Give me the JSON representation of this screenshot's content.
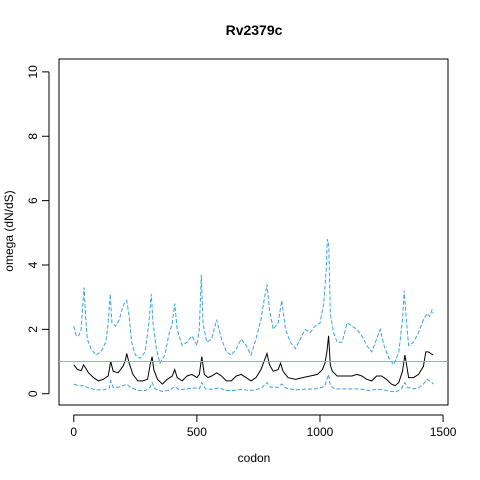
{
  "chart_data": {
    "type": "line",
    "title": "Rv2379c",
    "xlabel": "codon",
    "ylabel": "omega (dN/dS)",
    "xlim": [
      -60,
      1520
    ],
    "ylim": [
      -0.35,
      10.4
    ],
    "xticks": [
      0,
      500,
      1000,
      1500
    ],
    "yticks": [
      0,
      2,
      4,
      6,
      8,
      10
    ],
    "grid": false,
    "reference_line": {
      "y": 1,
      "color": "#d98bd0"
    },
    "series": [
      {
        "role": "estimate",
        "color": "#000000",
        "dash": false,
        "points": [
          [
            0,
            0.9
          ],
          [
            15,
            0.75
          ],
          [
            30,
            0.72
          ],
          [
            40,
            0.9
          ],
          [
            48,
            0.8
          ],
          [
            60,
            0.65
          ],
          [
            80,
            0.5
          ],
          [
            100,
            0.4
          ],
          [
            120,
            0.45
          ],
          [
            140,
            0.55
          ],
          [
            150,
            1.0
          ],
          [
            160,
            0.7
          ],
          [
            180,
            0.65
          ],
          [
            200,
            0.85
          ],
          [
            210,
            1.05
          ],
          [
            215,
            1.25
          ],
          [
            225,
            0.95
          ],
          [
            240,
            0.6
          ],
          [
            260,
            0.4
          ],
          [
            280,
            0.4
          ],
          [
            300,
            0.45
          ],
          [
            310,
            0.9
          ],
          [
            318,
            1.15
          ],
          [
            325,
            0.75
          ],
          [
            340,
            0.45
          ],
          [
            360,
            0.3
          ],
          [
            380,
            0.45
          ],
          [
            400,
            0.55
          ],
          [
            410,
            0.75
          ],
          [
            420,
            0.5
          ],
          [
            440,
            0.4
          ],
          [
            460,
            0.55
          ],
          [
            480,
            0.6
          ],
          [
            500,
            0.5
          ],
          [
            510,
            0.6
          ],
          [
            520,
            1.15
          ],
          [
            530,
            0.6
          ],
          [
            545,
            0.5
          ],
          [
            560,
            0.55
          ],
          [
            580,
            0.65
          ],
          [
            600,
            0.55
          ],
          [
            620,
            0.4
          ],
          [
            640,
            0.4
          ],
          [
            660,
            0.55
          ],
          [
            680,
            0.6
          ],
          [
            700,
            0.5
          ],
          [
            720,
            0.4
          ],
          [
            740,
            0.5
          ],
          [
            760,
            0.75
          ],
          [
            775,
            1.05
          ],
          [
            785,
            1.25
          ],
          [
            795,
            0.9
          ],
          [
            810,
            0.7
          ],
          [
            830,
            0.75
          ],
          [
            840,
            0.95
          ],
          [
            850,
            0.7
          ],
          [
            870,
            0.5
          ],
          [
            900,
            0.45
          ],
          [
            930,
            0.5
          ],
          [
            960,
            0.55
          ],
          [
            990,
            0.6
          ],
          [
            1010,
            0.75
          ],
          [
            1020,
            0.95
          ],
          [
            1028,
            1.3
          ],
          [
            1035,
            1.8
          ],
          [
            1042,
            0.9
          ],
          [
            1050,
            0.7
          ],
          [
            1070,
            0.55
          ],
          [
            1100,
            0.55
          ],
          [
            1130,
            0.55
          ],
          [
            1150,
            0.6
          ],
          [
            1170,
            0.55
          ],
          [
            1190,
            0.45
          ],
          [
            1210,
            0.4
          ],
          [
            1230,
            0.55
          ],
          [
            1250,
            0.55
          ],
          [
            1270,
            0.45
          ],
          [
            1290,
            0.3
          ],
          [
            1305,
            0.25
          ],
          [
            1320,
            0.35
          ],
          [
            1335,
            0.7
          ],
          [
            1345,
            1.2
          ],
          [
            1352,
            0.9
          ],
          [
            1360,
            0.5
          ],
          [
            1380,
            0.5
          ],
          [
            1400,
            0.6
          ],
          [
            1420,
            0.85
          ],
          [
            1430,
            1.3
          ],
          [
            1440,
            1.3
          ],
          [
            1450,
            1.25
          ],
          [
            1460,
            1.2
          ]
        ]
      },
      {
        "role": "upper",
        "color": "#3ba3dd",
        "dash": true,
        "points": [
          [
            0,
            2.1
          ],
          [
            10,
            1.8
          ],
          [
            20,
            1.8
          ],
          [
            30,
            2.0
          ],
          [
            35,
            2.6
          ],
          [
            42,
            3.3
          ],
          [
            48,
            2.4
          ],
          [
            55,
            1.7
          ],
          [
            70,
            1.4
          ],
          [
            90,
            1.2
          ],
          [
            110,
            1.3
          ],
          [
            130,
            1.6
          ],
          [
            140,
            2.2
          ],
          [
            148,
            3.1
          ],
          [
            155,
            2.2
          ],
          [
            170,
            2.1
          ],
          [
            185,
            2.3
          ],
          [
            195,
            2.6
          ],
          [
            205,
            2.8
          ],
          [
            215,
            2.9
          ],
          [
            225,
            2.4
          ],
          [
            235,
            1.6
          ],
          [
            250,
            1.2
          ],
          [
            270,
            1.1
          ],
          [
            290,
            1.3
          ],
          [
            305,
            2.2
          ],
          [
            315,
            3.1
          ],
          [
            322,
            2.2
          ],
          [
            335,
            1.4
          ],
          [
            350,
            0.95
          ],
          [
            370,
            1.2
          ],
          [
            385,
            1.8
          ],
          [
            400,
            2.2
          ],
          [
            410,
            2.8
          ],
          [
            420,
            2.0
          ],
          [
            440,
            1.5
          ],
          [
            460,
            1.6
          ],
          [
            480,
            1.8
          ],
          [
            500,
            1.5
          ],
          [
            510,
            2.0
          ],
          [
            518,
            3.7
          ],
          [
            525,
            2.2
          ],
          [
            540,
            1.6
          ],
          [
            560,
            1.7
          ],
          [
            580,
            2.3
          ],
          [
            600,
            1.7
          ],
          [
            620,
            1.3
          ],
          [
            640,
            1.2
          ],
          [
            660,
            1.4
          ],
          [
            680,
            1.7
          ],
          [
            700,
            1.5
          ],
          [
            720,
            1.2
          ],
          [
            740,
            1.7
          ],
          [
            760,
            2.3
          ],
          [
            775,
            3.0
          ],
          [
            785,
            3.4
          ],
          [
            795,
            2.6
          ],
          [
            810,
            2.0
          ],
          [
            830,
            2.2
          ],
          [
            845,
            2.9
          ],
          [
            860,
            2.0
          ],
          [
            880,
            1.6
          ],
          [
            900,
            1.4
          ],
          [
            920,
            1.7
          ],
          [
            940,
            2.0
          ],
          [
            960,
            1.9
          ],
          [
            980,
            2.1
          ],
          [
            1000,
            2.2
          ],
          [
            1015,
            2.8
          ],
          [
            1025,
            3.8
          ],
          [
            1030,
            4.8
          ],
          [
            1036,
            4.6
          ],
          [
            1042,
            2.5
          ],
          [
            1055,
            1.9
          ],
          [
            1070,
            1.6
          ],
          [
            1090,
            1.6
          ],
          [
            1110,
            2.2
          ],
          [
            1130,
            2.1
          ],
          [
            1150,
            2.0
          ],
          [
            1170,
            1.8
          ],
          [
            1190,
            1.5
          ],
          [
            1210,
            1.3
          ],
          [
            1230,
            1.7
          ],
          [
            1245,
            2.0
          ],
          [
            1260,
            1.5
          ],
          [
            1280,
            1.1
          ],
          [
            1300,
            0.9
          ],
          [
            1320,
            1.3
          ],
          [
            1335,
            2.3
          ],
          [
            1342,
            3.2
          ],
          [
            1350,
            2.4
          ],
          [
            1360,
            1.5
          ],
          [
            1380,
            1.6
          ],
          [
            1400,
            1.9
          ],
          [
            1420,
            2.3
          ],
          [
            1435,
            2.5
          ],
          [
            1445,
            2.4
          ],
          [
            1455,
            2.6
          ],
          [
            1460,
            2.5
          ]
        ]
      },
      {
        "role": "lower",
        "color": "#3ba3dd",
        "dash": true,
        "points": [
          [
            0,
            0.3
          ],
          [
            20,
            0.25
          ],
          [
            40,
            0.25
          ],
          [
            60,
            0.18
          ],
          [
            90,
            0.12
          ],
          [
            120,
            0.12
          ],
          [
            145,
            0.18
          ],
          [
            150,
            0.4
          ],
          [
            160,
            0.2
          ],
          [
            180,
            0.2
          ],
          [
            200,
            0.25
          ],
          [
            215,
            0.3
          ],
          [
            230,
            0.2
          ],
          [
            260,
            0.1
          ],
          [
            290,
            0.1
          ],
          [
            310,
            0.2
          ],
          [
            318,
            0.35
          ],
          [
            330,
            0.15
          ],
          [
            360,
            0.07
          ],
          [
            390,
            0.12
          ],
          [
            410,
            0.22
          ],
          [
            430,
            0.12
          ],
          [
            460,
            0.15
          ],
          [
            490,
            0.18
          ],
          [
            510,
            0.15
          ],
          [
            520,
            0.35
          ],
          [
            535,
            0.15
          ],
          [
            560,
            0.14
          ],
          [
            590,
            0.18
          ],
          [
            620,
            0.1
          ],
          [
            650,
            0.1
          ],
          [
            680,
            0.14
          ],
          [
            710,
            0.1
          ],
          [
            740,
            0.12
          ],
          [
            765,
            0.2
          ],
          [
            785,
            0.35
          ],
          [
            800,
            0.2
          ],
          [
            830,
            0.2
          ],
          [
            845,
            0.3
          ],
          [
            860,
            0.18
          ],
          [
            900,
            0.12
          ],
          [
            940,
            0.14
          ],
          [
            980,
            0.15
          ],
          [
            1010,
            0.2
          ],
          [
            1020,
            0.25
          ],
          [
            1028,
            0.45
          ],
          [
            1035,
            0.6
          ],
          [
            1042,
            0.25
          ],
          [
            1060,
            0.15
          ],
          [
            1100,
            0.15
          ],
          [
            1140,
            0.15
          ],
          [
            1170,
            0.14
          ],
          [
            1200,
            0.1
          ],
          [
            1230,
            0.14
          ],
          [
            1260,
            0.12
          ],
          [
            1290,
            0.07
          ],
          [
            1310,
            0.06
          ],
          [
            1330,
            0.15
          ],
          [
            1345,
            0.35
          ],
          [
            1355,
            0.2
          ],
          [
            1380,
            0.15
          ],
          [
            1400,
            0.18
          ],
          [
            1420,
            0.3
          ],
          [
            1435,
            0.45
          ],
          [
            1445,
            0.4
          ],
          [
            1455,
            0.35
          ],
          [
            1460,
            0.3
          ]
        ]
      }
    ]
  }
}
